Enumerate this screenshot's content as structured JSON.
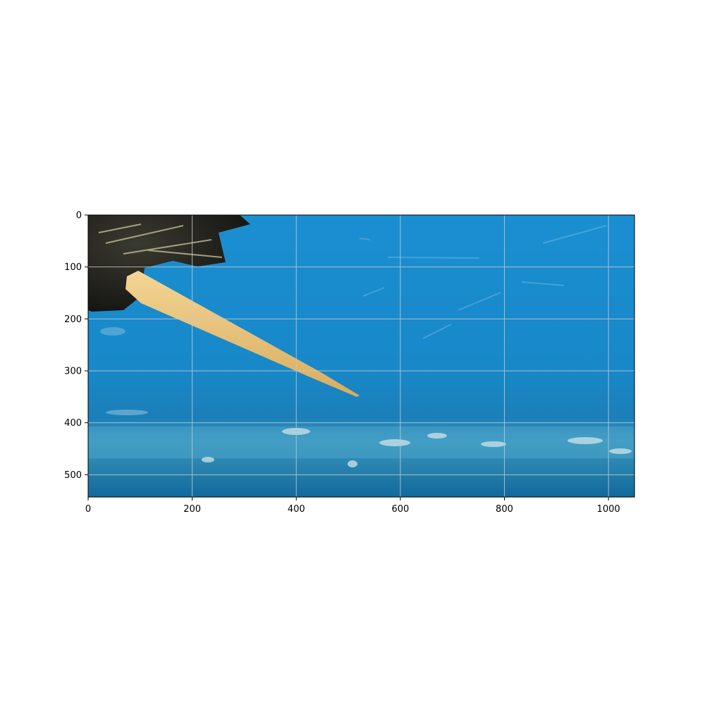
{
  "chart_data": {
    "type": "image",
    "x_ticks": [
      0,
      200,
      400,
      600,
      800,
      1000
    ],
    "y_ticks": [
      0,
      100,
      200,
      300,
      400,
      500
    ],
    "xlim": [
      0,
      1050
    ],
    "ylim": [
      543,
      0
    ],
    "y_inverted": true,
    "grid": true,
    "x_tick_labels": [
      "0",
      "200",
      "400",
      "600",
      "800",
      "1000"
    ],
    "y_tick_labels": [
      "0",
      "100",
      "200",
      "300",
      "400",
      "500"
    ]
  },
  "colors": {
    "water": "#1c8ccc",
    "water_deep": "#0f6aa3",
    "sediment": "#4aa4c8",
    "needle": "#e9c47a",
    "wing_dark": "#1a1a16",
    "grid": "#c8c8c8"
  }
}
